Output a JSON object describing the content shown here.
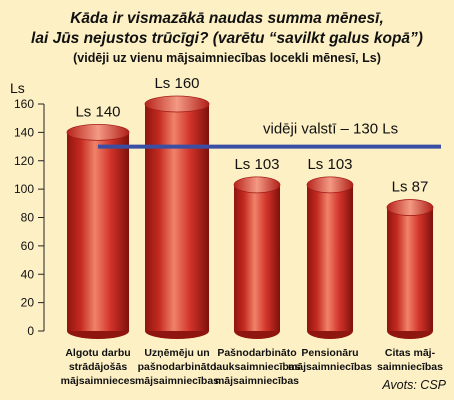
{
  "colors": {
    "background": "#fdf0c4",
    "bar": "#d8352a",
    "bar_dark": "#9c1a14",
    "bar_light": "#f17c5e",
    "average_line": "#3a4fa3",
    "axis": "#222222"
  },
  "chart_data": {
    "type": "bar",
    "title_lines": [
      "Kāda ir vismazākā naudas summa mēnesī,",
      "lai Jūs nejustos trūcīgi? (varētu “savilkt galus kopā”)"
    ],
    "subtitle": "(vidēji uz vienu mājsaimniecības locekli mēnesī, Ls)",
    "ylabel": "Ls",
    "ylim": [
      0,
      160
    ],
    "yticks": [
      0,
      20,
      40,
      60,
      80,
      100,
      120,
      140,
      160
    ],
    "categories": [
      [
        "Algotu darbu",
        "strādājošās",
        "mājsaimnieces"
      ],
      [
        "Uzņēmēju un",
        "pašnodarbināto",
        "mājsaimniecības"
      ],
      [
        "Pašnodarbināto",
        "lauksaimniecības",
        "mājsaimniecības"
      ],
      [
        "Pensionāru",
        "mājsaimniecības"
      ],
      [
        "Citas māj-",
        "saimniecības"
      ]
    ],
    "values": [
      140,
      160,
      103,
      103,
      87
    ],
    "data_labels": [
      "Ls 140",
      "Ls 160",
      "Ls 103",
      "Ls 103",
      "Ls 87"
    ],
    "average": {
      "value": 130,
      "label": "vidēji valstī – 130 Ls"
    },
    "grid": false,
    "source": "Avots: CSP"
  }
}
